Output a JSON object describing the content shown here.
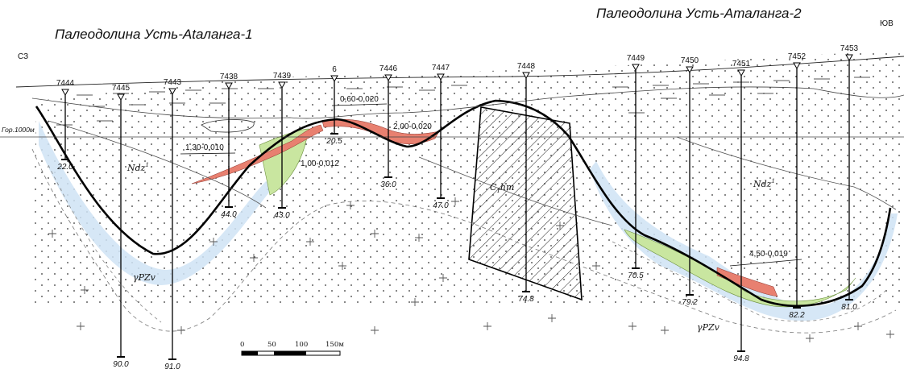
{
  "titles": {
    "left": "Палеодолина Усть-Ataланга-1",
    "right": "Палеодолина Усть-Aталанга-2"
  },
  "directions": {
    "left": "СЗ",
    "right": "ЮВ"
  },
  "level_label": "Гор.1000м",
  "units": {
    "ndz_left": "Ndz",
    "ndz_left_sup": "1",
    "ndz_right": "Ndz",
    "ndz_right_sup": "1",
    "chm": "C",
    "chm_sub": "1",
    "chm_rest": "hm",
    "gpzv_left": "γPZv",
    "gpzv_right": "γPZv"
  },
  "ore_labels": [
    "0,60-0,020",
    "1,30-0,010",
    "2,00-0,020",
    "1,00-0,012",
    "4,50-0,019"
  ],
  "wells": [
    {
      "id": "7444",
      "depth": "22.0"
    },
    {
      "id": "7445",
      "depth": "90.0"
    },
    {
      "id": "7443",
      "depth": "91.0"
    },
    {
      "id": "7438",
      "depth": "44.0"
    },
    {
      "id": "7439",
      "depth": "43.0"
    },
    {
      "id": "6",
      "depth": "20.5"
    },
    {
      "id": "7446",
      "depth": "36.0"
    },
    {
      "id": "7447",
      "depth": "47.0"
    },
    {
      "id": "7448",
      "depth": "74.8"
    },
    {
      "id": "7449",
      "depth": "70.5"
    },
    {
      "id": "7450",
      "depth": "79.2"
    },
    {
      "id": "7451",
      "depth": "94.8"
    },
    {
      "id": "7452",
      "depth": "82.2"
    },
    {
      "id": "7453",
      "depth": "81.0"
    }
  ],
  "scale_bar": {
    "ticks": [
      "0",
      "50",
      "100",
      "150м"
    ]
  },
  "colors": {
    "ore": "#e88070",
    "weathered_crust": "#c9e6a0",
    "aquifer": "#cfe3f4",
    "ink": "#111111"
  }
}
